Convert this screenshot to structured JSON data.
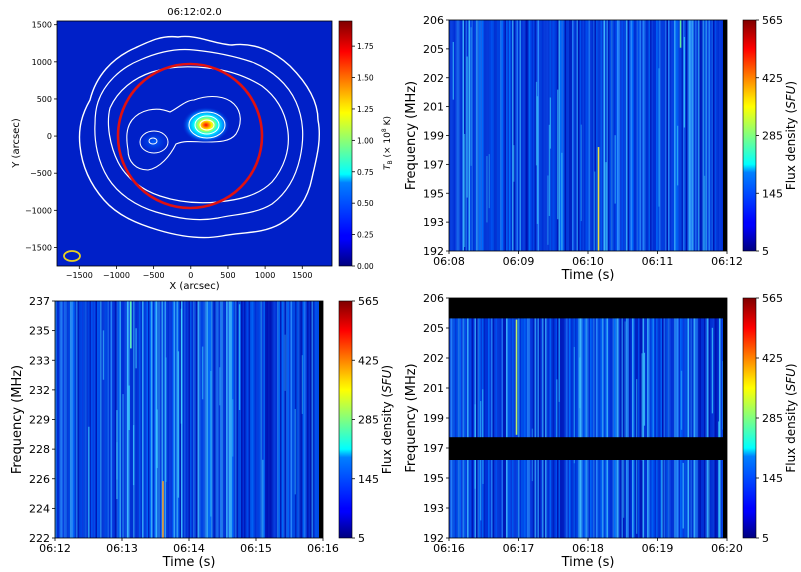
{
  "chart_data": [
    {
      "type": "heatmap",
      "panel": "top-left",
      "title": "06:12:02.0",
      "xlabel": "X (arcsec)",
      "ylabel": "Y (arcsec)",
      "xlim": [
        -1800,
        1900
      ],
      "ylim": [
        -1750,
        1550
      ],
      "x_ticks": [
        -1500,
        -1000,
        -500,
        0,
        500,
        1000,
        1500
      ],
      "x_tick_labels": [
        "−1500",
        "−1000",
        "−500",
        "0",
        "500",
        "1000",
        "1500"
      ],
      "y_ticks": [
        1500,
        1000,
        500,
        0,
        -500,
        -1000,
        -1500
      ],
      "y_tick_labels": [
        "1500",
        "1000",
        "500",
        "0",
        "−500",
        "−1000",
        "−1500"
      ],
      "colorbar": {
        "label_prefix": "T",
        "label_sub": "B",
        "label_rest": " (× 10",
        "label_exp": "8",
        "label_unit": " K)",
        "range": [
          0,
          1.95
        ],
        "ticks": [
          0.0,
          0.25,
          0.5,
          0.75,
          1.0,
          1.25,
          1.5,
          1.75
        ],
        "tick_labels": [
          "0.00",
          "0.25",
          "0.50",
          "0.75",
          "1.00",
          "1.25",
          "1.50",
          "1.75"
        ]
      },
      "annotations": {
        "solar_disk_center": [
          0,
          0
        ],
        "solar_disk_radius_arcsec": 960,
        "bright_source_center": [
          230,
          150
        ],
        "secondary_source_center": [
          -500,
          -80
        ],
        "beam_center": [
          -1590,
          -1600
        ]
      }
    },
    {
      "type": "heatmap",
      "panel": "top-right",
      "xlabel": "Time (s)",
      "ylabel": "Frequency (MHz)",
      "x_tick_labels": [
        "06:08",
        "06:09",
        "06:10",
        "06:11",
        "06:12"
      ],
      "y_tick_labels": [
        "206",
        "205",
        "202",
        "201",
        "199",
        "197",
        "195",
        "193",
        "192"
      ],
      "colorbar": {
        "label": "Flux density",
        "unit": "SFU",
        "range": [
          5,
          565
        ],
        "tick_labels": [
          "565",
          "425",
          "285",
          "145",
          "5"
        ]
      }
    },
    {
      "type": "heatmap",
      "panel": "bottom-left",
      "xlabel": "Time (s)",
      "ylabel": "Frequency (MHz)",
      "x_tick_labels": [
        "06:12",
        "06:13",
        "06:14",
        "06:15",
        "06:16"
      ],
      "y_tick_labels": [
        "237",
        "235",
        "233",
        "232",
        "229",
        "228",
        "226",
        "224",
        "222"
      ],
      "colorbar": {
        "label": "Flux density",
        "unit": "SFU",
        "range": [
          5,
          565
        ],
        "tick_labels": [
          "565",
          "425",
          "285",
          "145",
          "5"
        ]
      }
    },
    {
      "type": "heatmap",
      "panel": "bottom-right",
      "xlabel": "Time (s)",
      "ylabel": "Frequency (MHz)",
      "x_tick_labels": [
        "06:16",
        "06:17",
        "06:18",
        "06:19",
        "06:20"
      ],
      "y_tick_labels": [
        "206",
        "205",
        "202",
        "201",
        "199",
        "197",
        "195",
        "193",
        "192"
      ],
      "colorbar": {
        "label": "Flux density",
        "unit": "SFU",
        "range": [
          5,
          565
        ],
        "tick_labels": [
          "565",
          "425",
          "285",
          "145",
          "5"
        ]
      }
    }
  ]
}
